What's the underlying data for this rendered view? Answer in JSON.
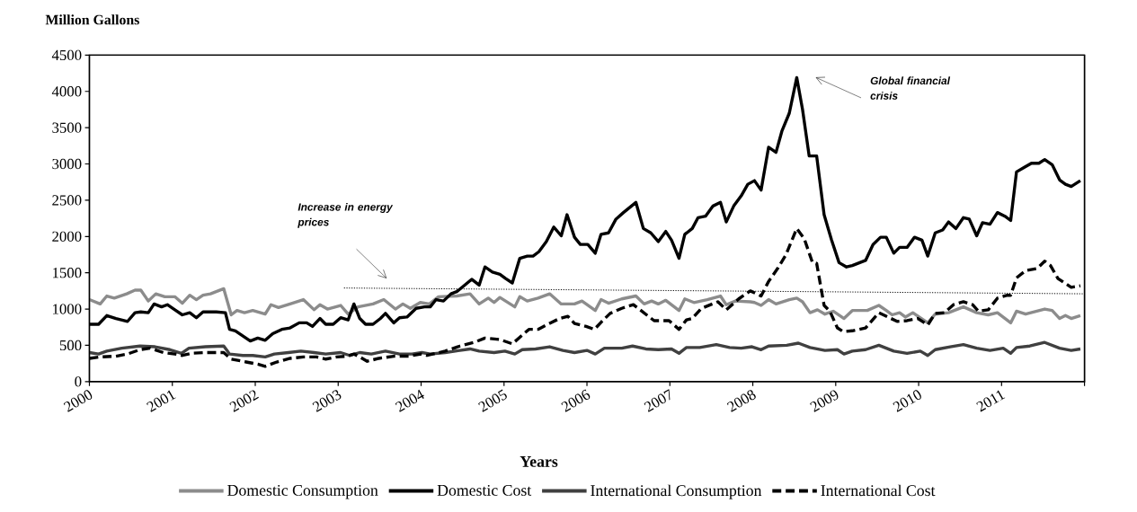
{
  "chart_data": {
    "type": "line",
    "ylabel": "Million Gallons",
    "xlabel": "Years",
    "xlim": [
      2000,
      2012
    ],
    "xticks": [
      2000,
      2001,
      2002,
      2003,
      2004,
      2005,
      2006,
      2007,
      2008,
      2009,
      2010,
      2011,
      {
        "value": 2012,
        "label": null
      }
    ],
    "ylim": [
      0,
      4500
    ],
    "yticks": [
      0,
      500,
      1000,
      1500,
      2000,
      2500,
      3000,
      3500,
      4000,
      4500
    ],
    "legend": "bottom",
    "annotations": [
      "Increase in energy prices",
      "Global financial crisis"
    ],
    "series": [
      {
        "name": "Domestic Consumption",
        "color": "#8c8c8c",
        "x": [
          2000.0,
          2000.13,
          2000.21,
          2000.3,
          2000.45,
          2000.55,
          2000.62,
          2000.71,
          2000.8,
          2000.91,
          2001.03,
          2001.12,
          2001.21,
          2001.29,
          2001.37,
          2001.46,
          2001.62,
          2001.71,
          2001.78,
          2001.87,
          2001.97,
          2002.12,
          2002.19,
          2002.28,
          2002.42,
          2002.58,
          2002.71,
          2002.78,
          2002.87,
          2003.03,
          2003.12,
          2003.24,
          2003.42,
          2003.55,
          2003.69,
          2003.78,
          2003.87,
          2003.99,
          2004.1,
          2004.21,
          2004.43,
          2004.59,
          2004.7,
          2004.81,
          2004.88,
          2004.95,
          2005.13,
          2005.19,
          2005.28,
          2005.41,
          2005.55,
          2005.69,
          2005.85,
          2005.94,
          2006.1,
          2006.17,
          2006.26,
          2006.42,
          2006.59,
          2006.69,
          2006.78,
          2006.86,
          2006.95,
          2007.11,
          2007.18,
          2007.29,
          2007.45,
          2007.61,
          2007.68,
          2007.79,
          2007.97,
          2008.02,
          2008.1,
          2008.19,
          2008.28,
          2008.44,
          2008.53,
          2008.6,
          2008.69,
          2008.78,
          2008.87,
          2008.97,
          2009.1,
          2009.2,
          2009.38,
          2009.52,
          2009.61,
          2009.68,
          2009.77,
          2009.84,
          2009.93,
          2010.11,
          2010.2,
          2010.36,
          2010.54,
          2010.7,
          2010.84,
          2010.95,
          2011.11,
          2011.18,
          2011.29,
          2011.52,
          2011.61,
          2011.7,
          2011.77,
          2011.84,
          2011.95
        ],
        "values": [
          1130,
          1070,
          1180,
          1150,
          1210,
          1260,
          1260,
          1110,
          1210,
          1170,
          1170,
          1080,
          1190,
          1130,
          1190,
          1210,
          1280,
          920,
          980,
          950,
          980,
          930,
          1060,
          1020,
          1070,
          1130,
          990,
          1060,
          1000,
          1050,
          930,
          1030,
          1070,
          1130,
          1000,
          1070,
          1010,
          1090,
          1070,
          1170,
          1180,
          1210,
          1070,
          1150,
          1090,
          1160,
          1030,
          1170,
          1110,
          1150,
          1210,
          1070,
          1070,
          1110,
          980,
          1130,
          1080,
          1140,
          1180,
          1070,
          1110,
          1070,
          1120,
          980,
          1140,
          1090,
          1130,
          1180,
          1060,
          1110,
          1100,
          1090,
          1050,
          1130,
          1070,
          1130,
          1150,
          1100,
          950,
          990,
          930,
          970,
          870,
          980,
          980,
          1050,
          980,
          920,
          950,
          890,
          950,
          810,
          930,
          950,
          1030,
          950,
          920,
          950,
          810,
          970,
          930,
          1000,
          980,
          870,
          910,
          870,
          910
        ]
      },
      {
        "name": "Domestic Cost",
        "color": "#000000",
        "x": [
          2000.0,
          2000.11,
          2000.21,
          2000.32,
          2000.46,
          2000.55,
          2000.62,
          2000.71,
          2000.78,
          2000.87,
          2000.94,
          2001.03,
          2001.12,
          2001.21,
          2001.29,
          2001.37,
          2001.53,
          2001.64,
          2001.69,
          2001.76,
          2001.94,
          2002.03,
          2002.12,
          2002.21,
          2002.32,
          2002.42,
          2002.53,
          2002.62,
          2002.69,
          2002.78,
          2002.85,
          2002.94,
          2003.03,
          2003.12,
          2003.19,
          2003.26,
          2003.33,
          2003.42,
          2003.51,
          2003.57,
          2003.67,
          2003.74,
          2003.83,
          2003.94,
          2004.04,
          2004.11,
          2004.18,
          2004.27,
          2004.36,
          2004.43,
          2004.61,
          2004.7,
          2004.77,
          2004.86,
          2004.95,
          2005.02,
          2005.1,
          2005.19,
          2005.28,
          2005.35,
          2005.42,
          2005.51,
          2005.6,
          2005.69,
          2005.76,
          2005.85,
          2005.92,
          2006.01,
          2006.1,
          2006.17,
          2006.26,
          2006.35,
          2006.44,
          2006.59,
          2006.68,
          2006.77,
          2006.86,
          2006.95,
          2007.02,
          2007.11,
          2007.18,
          2007.27,
          2007.34,
          2007.43,
          2007.52,
          2007.61,
          2007.68,
          2007.77,
          2007.86,
          2007.94,
          2008.02,
          2008.1,
          2008.19,
          2008.28,
          2008.35,
          2008.44,
          2008.53,
          2008.6,
          2008.68,
          2008.77,
          2008.86,
          2008.95,
          2009.04,
          2009.13,
          2009.2,
          2009.29,
          2009.36,
          2009.45,
          2009.54,
          2009.61,
          2009.7,
          2009.77,
          2009.86,
          2009.95,
          2010.04,
          2010.11,
          2010.2,
          2010.29,
          2010.36,
          2010.45,
          2010.54,
          2010.61,
          2010.7,
          2010.77,
          2010.86,
          2010.95,
          2011.04,
          2011.11,
          2011.18,
          2011.27,
          2011.36,
          2011.45,
          2011.52,
          2011.61,
          2011.7,
          2011.77,
          2011.84,
          2011.95
        ],
        "values": [
          790,
          790,
          910,
          870,
          830,
          950,
          960,
          950,
          1070,
          1030,
          1060,
          990,
          920,
          950,
          880,
          960,
          960,
          950,
          720,
          700,
          560,
          600,
          570,
          660,
          720,
          740,
          810,
          810,
          760,
          870,
          790,
          790,
          880,
          850,
          1070,
          870,
          790,
          790,
          870,
          940,
          810,
          880,
          890,
          1010,
          1030,
          1030,
          1130,
          1110,
          1210,
          1240,
          1410,
          1330,
          1580,
          1510,
          1480,
          1420,
          1360,
          1700,
          1730,
          1730,
          1790,
          1930,
          2130,
          2010,
          2300,
          1990,
          1890,
          1890,
          1770,
          2030,
          2050,
          2240,
          2330,
          2470,
          2110,
          2050,
          1930,
          2070,
          1950,
          1700,
          2030,
          2110,
          2260,
          2280,
          2420,
          2470,
          2200,
          2420,
          2560,
          2720,
          2770,
          2640,
          3230,
          3160,
          3450,
          3700,
          4190,
          3750,
          3110,
          3110,
          2300,
          1950,
          1640,
          1580,
          1600,
          1640,
          1670,
          1890,
          1990,
          1990,
          1770,
          1850,
          1850,
          1990,
          1950,
          1730,
          2050,
          2090,
          2200,
          2110,
          2260,
          2240,
          2010,
          2190,
          2170,
          2330,
          2280,
          2220,
          2890,
          2950,
          3010,
          3010,
          3060,
          2990,
          2780,
          2720,
          2690,
          2770
        ]
      },
      {
        "name": "International Consumption",
        "color": "#404040",
        "x": [
          2000.0,
          2000.11,
          2000.21,
          2000.39,
          2000.61,
          2000.79,
          2000.97,
          2001.11,
          2001.2,
          2001.4,
          2001.62,
          2001.69,
          2001.85,
          2001.97,
          2002.12,
          2002.23,
          2002.4,
          2002.55,
          2002.71,
          2002.85,
          2003.03,
          2003.14,
          2003.26,
          2003.4,
          2003.57,
          2003.74,
          2003.89,
          2004.01,
          2004.11,
          2004.29,
          2004.59,
          2004.7,
          2004.88,
          2005.01,
          2005.13,
          2005.22,
          2005.38,
          2005.55,
          2005.71,
          2005.85,
          2006.0,
          2006.1,
          2006.21,
          2006.42,
          2006.55,
          2006.71,
          2006.86,
          2007.02,
          2007.11,
          2007.2,
          2007.36,
          2007.56,
          2007.72,
          2007.86,
          2007.99,
          2008.1,
          2008.19,
          2008.41,
          2008.55,
          2008.69,
          2008.87,
          2009.02,
          2009.1,
          2009.2,
          2009.36,
          2009.52,
          2009.7,
          2009.86,
          2010.02,
          2010.11,
          2010.2,
          2010.38,
          2010.54,
          2010.7,
          2010.86,
          2011.02,
          2011.11,
          2011.18,
          2011.34,
          2011.52,
          2011.7,
          2011.84,
          2011.95
        ],
        "values": [
          400,
          380,
          420,
          460,
          490,
          480,
          440,
          390,
          460,
          480,
          490,
          380,
          360,
          360,
          340,
          380,
          400,
          420,
          400,
          380,
          400,
          360,
          400,
          380,
          420,
          380,
          380,
          400,
          380,
          400,
          450,
          420,
          400,
          420,
          380,
          440,
          450,
          480,
          430,
          400,
          430,
          380,
          460,
          460,
          490,
          450,
          440,
          450,
          390,
          470,
          470,
          510,
          470,
          460,
          480,
          440,
          490,
          500,
          530,
          470,
          430,
          440,
          380,
          420,
          440,
          500,
          420,
          390,
          420,
          360,
          440,
          480,
          510,
          460,
          430,
          460,
          390,
          470,
          490,
          540,
          460,
          430,
          450
        ]
      },
      {
        "name": "International Cost",
        "color": "#000000",
        "line_style": "dashed",
        "x": [
          2000.0,
          2000.13,
          2000.32,
          2000.46,
          2000.61,
          2000.73,
          2000.89,
          2001.03,
          2001.12,
          2001.23,
          2001.4,
          2001.62,
          2001.71,
          2001.89,
          2002.03,
          2002.12,
          2002.26,
          2002.42,
          2002.58,
          2002.74,
          2002.85,
          2002.98,
          2003.1,
          2003.19,
          2003.26,
          2003.35,
          2003.49,
          2003.67,
          2003.85,
          2004.0,
          2004.07,
          2004.29,
          2004.47,
          2004.64,
          2004.77,
          2004.95,
          2005.1,
          2005.19,
          2005.3,
          2005.41,
          2005.51,
          2005.67,
          2005.77,
          2005.85,
          2005.99,
          2006.09,
          2006.18,
          2006.28,
          2006.42,
          2006.56,
          2006.64,
          2006.73,
          2006.81,
          2006.99,
          2007.11,
          2007.2,
          2007.27,
          2007.38,
          2007.58,
          2007.68,
          2007.83,
          2007.97,
          2008.1,
          2008.19,
          2008.3,
          2008.4,
          2008.53,
          2008.62,
          2008.72,
          2008.77,
          2008.86,
          2008.93,
          2009.02,
          2009.09,
          2009.2,
          2009.36,
          2009.52,
          2009.63,
          2009.74,
          2009.86,
          2009.99,
          2010.11,
          2010.2,
          2010.31,
          2010.42,
          2010.54,
          2010.65,
          2010.72,
          2010.84,
          2010.95,
          2011.07,
          2011.11,
          2011.18,
          2011.29,
          2011.43,
          2011.52,
          2011.59,
          2011.68,
          2011.84,
          2011.95
        ],
        "values": [
          320,
          340,
          350,
          380,
          440,
          460,
          400,
          380,
          360,
          390,
          400,
          400,
          310,
          270,
          240,
          210,
          270,
          320,
          340,
          340,
          310,
          340,
          350,
          380,
          340,
          280,
          320,
          350,
          350,
          380,
          360,
          420,
          490,
          540,
          600,
          580,
          520,
          610,
          720,
          720,
          780,
          870,
          900,
          800,
          760,
          720,
          830,
          940,
          1010,
          1060,
          990,
          910,
          840,
          840,
          720,
          850,
          870,
          1010,
          1100,
          990,
          1140,
          1250,
          1180,
          1380,
          1560,
          1750,
          2110,
          1970,
          1640,
          1630,
          1050,
          970,
          740,
          690,
          700,
          740,
          950,
          890,
          830,
          840,
          870,
          780,
          940,
          950,
          1060,
          1100,
          1060,
          970,
          990,
          1150,
          1190,
          1190,
          1430,
          1530,
          1560,
          1660,
          1600,
          1420,
          1300,
          1320
        ]
      },
      {
        "type": "line",
        "color": "#000000",
        "line_style": "dotted",
        "x": [
          2003.07,
          2012
        ],
        "values": [
          1290,
          1210
        ]
      }
    ]
  }
}
